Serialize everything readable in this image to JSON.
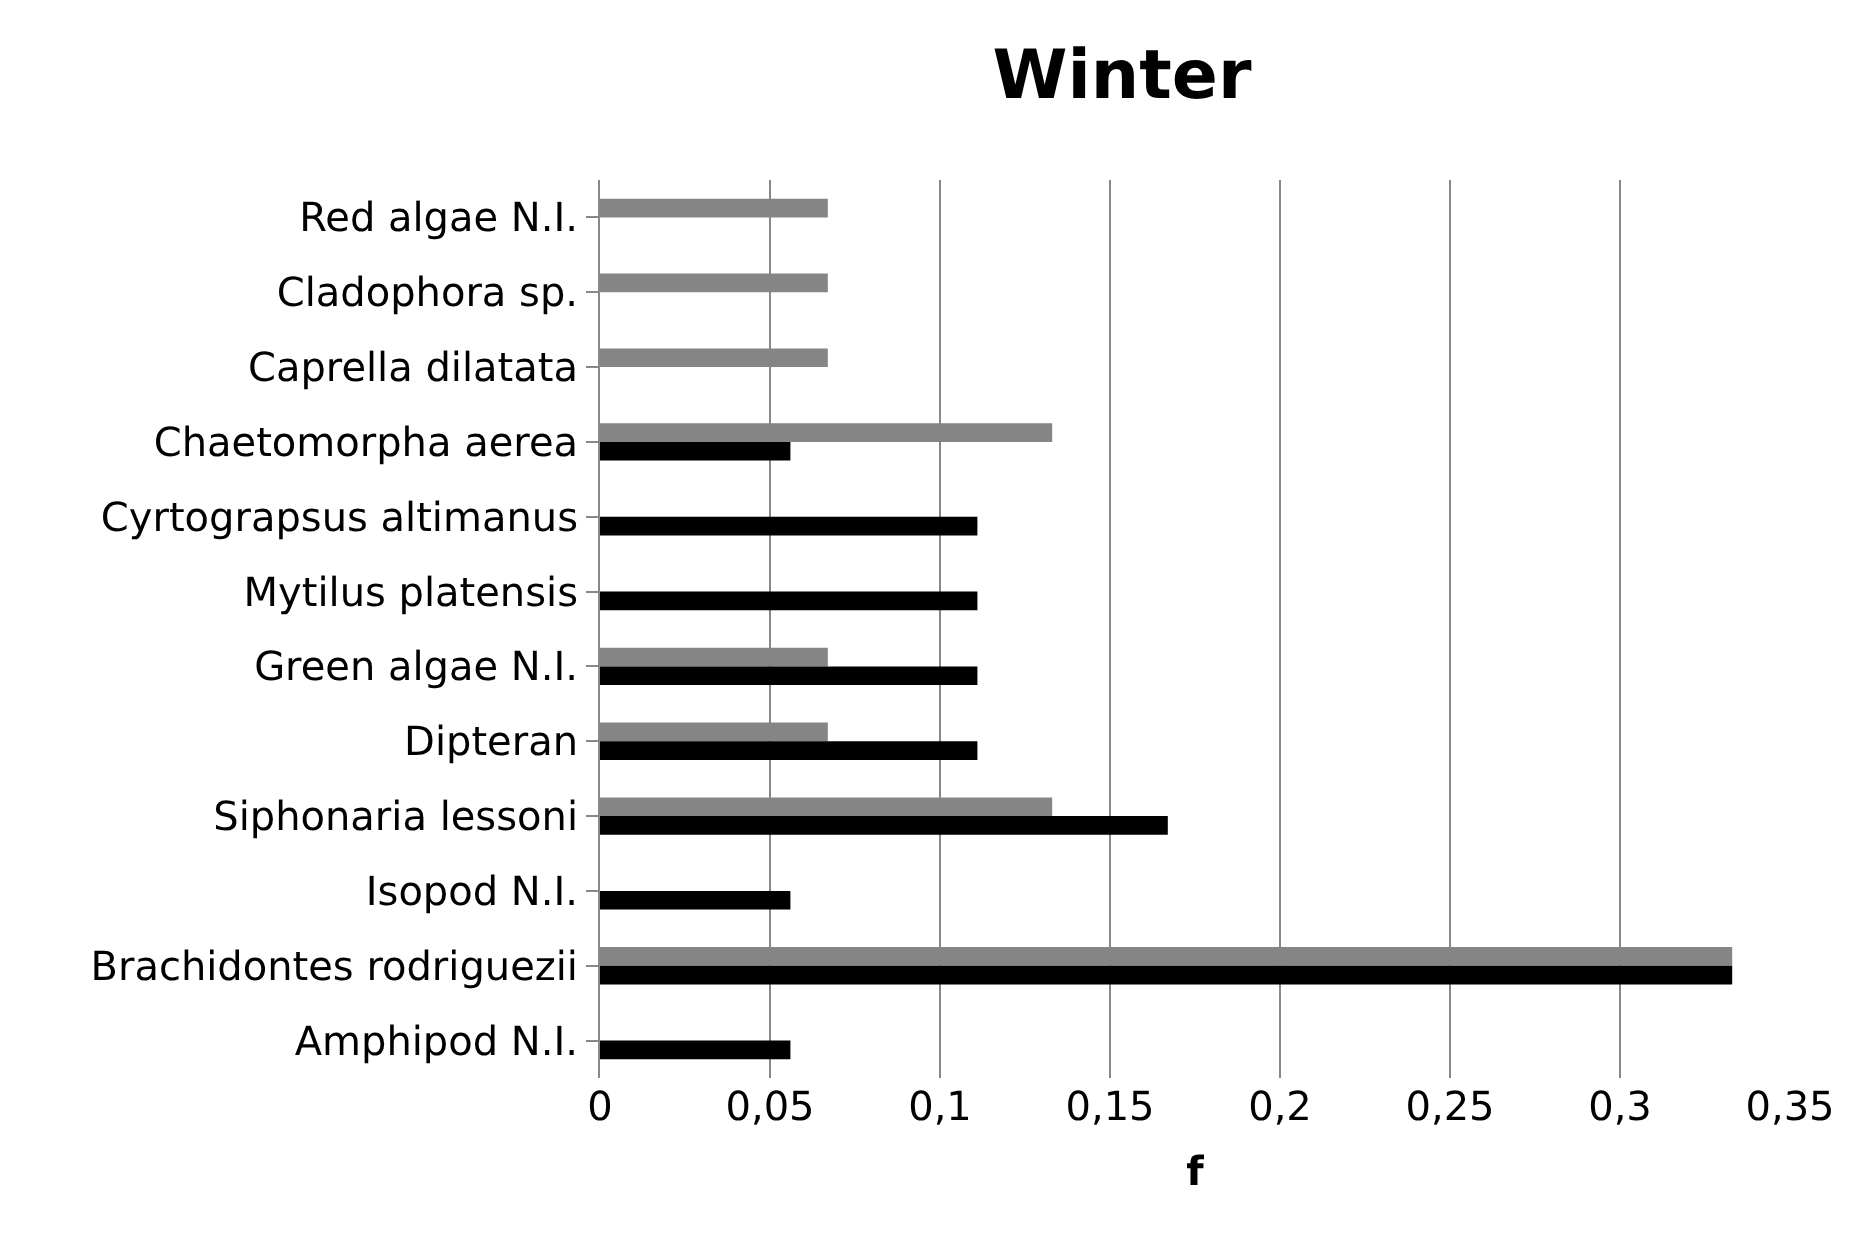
{
  "chart_data": {
    "type": "bar",
    "orientation": "horizontal",
    "title": "Winter",
    "xlabel": "f",
    "categories": [
      "Red algae N.I.",
      "Cladophora sp.",
      "Caprella dilatata",
      "Chaetomorpha aerea",
      "Cyrtograpsus altimanus",
      "Mytilus platensis",
      "Green algae N.I.",
      "Dipteran",
      "Siphonaria lessoni",
      "Isopod N.I.",
      "Brachidontes rodriguezii",
      "Amphipod N.I."
    ],
    "series": [
      {
        "color": "#858585",
        "values": [
          0.067,
          0.067,
          0.067,
          0.133,
          null,
          null,
          0.067,
          0.067,
          0.133,
          null,
          0.333,
          null
        ]
      },
      {
        "color": "#000000",
        "values": [
          null,
          null,
          null,
          0.056,
          0.111,
          0.111,
          0.111,
          0.111,
          0.167,
          0.056,
          0.333,
          0.056
        ]
      }
    ],
    "xlim": [
      0,
      0.35
    ],
    "xticks": [
      {
        "value": 0,
        "label": "0"
      },
      {
        "value": 0.05,
        "label": "0,05"
      },
      {
        "value": 0.1,
        "label": "0,1"
      },
      {
        "value": 0.15,
        "label": "0,15"
      },
      {
        "value": 0.2,
        "label": "0,2"
      },
      {
        "value": 0.25,
        "label": "0,25"
      },
      {
        "value": 0.3,
        "label": "0,3"
      },
      {
        "value": 0.35,
        "label": "0,35"
      }
    ],
    "grid": "x"
  }
}
